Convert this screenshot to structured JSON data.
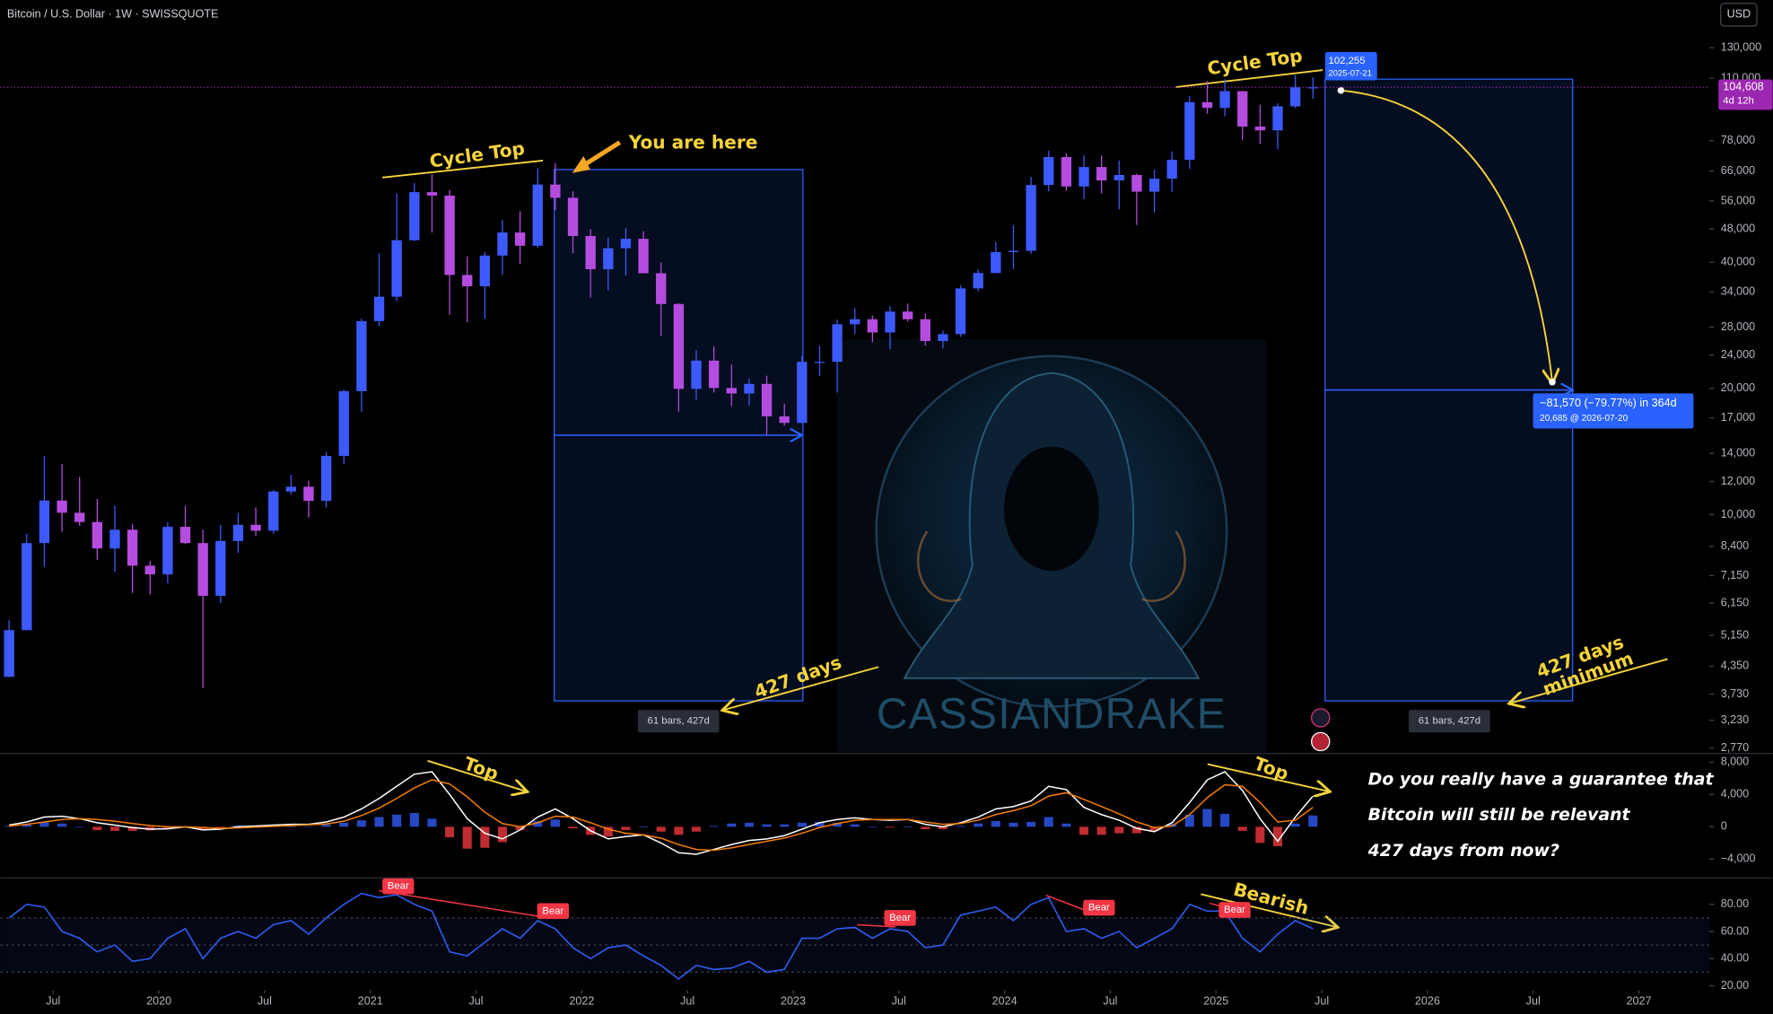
{
  "header": {
    "currency": "USD"
  },
  "watermark": "CASSIANDRAKE",
  "commentary": [
    "Do you really have a guarantee that",
    "Bitcoin will still be relevant",
    "427 days from now?"
  ],
  "chart_data": [
    {
      "type": "candlestick",
      "title": "Bitcoin / U.S. Dollar · 1W · SWISSQUOTE",
      "log_scale": true,
      "up_color": "#3d5afe",
      "down_color": "#b54ce0",
      "x": [
        "2019-04",
        "2019-05",
        "2019-06",
        "2019-07",
        "2019-08",
        "2019-09",
        "2019-10",
        "2019-11",
        "2019-12",
        "2020-01",
        "2020-02",
        "2020-03",
        "2020-04",
        "2020-05",
        "2020-06",
        "2020-07",
        "2020-08",
        "2020-09",
        "2020-10",
        "2020-11",
        "2020-12",
        "2021-01",
        "2021-02",
        "2021-03",
        "2021-04",
        "2021-05",
        "2021-06",
        "2021-07",
        "2021-08",
        "2021-09",
        "2021-10",
        "2021-11",
        "2021-12",
        "2022-01",
        "2022-02",
        "2022-03",
        "2022-04",
        "2022-05",
        "2022-06",
        "2022-07",
        "2022-08",
        "2022-09",
        "2022-10",
        "2022-11",
        "2022-12",
        "2023-01",
        "2023-02",
        "2023-03",
        "2023-04",
        "2023-05",
        "2023-06",
        "2023-07",
        "2023-08",
        "2023-09",
        "2023-10",
        "2023-11",
        "2023-12",
        "2024-01",
        "2024-02",
        "2024-03",
        "2024-04",
        "2024-05",
        "2024-06",
        "2024-07",
        "2024-08",
        "2024-09",
        "2024-10",
        "2024-11",
        "2024-12",
        "2025-01",
        "2025-02",
        "2025-03",
        "2025-04",
        "2025-05",
        "2025-06"
      ],
      "open": [
        4100,
        5300,
        8550,
        10800,
        10100,
        9600,
        8300,
        9200,
        7550,
        7200,
        9350,
        8550,
        6400,
        8650,
        9450,
        9150,
        11350,
        11650,
        10780,
        13800,
        19700,
        28950,
        33100,
        45150,
        58800,
        57700,
        37300,
        35050,
        41500,
        47100,
        43800,
        61300,
        57000,
        46200,
        38500,
        43200,
        45500,
        37650,
        31800,
        19950,
        23300,
        20050,
        19450,
        20500,
        17150,
        16550,
        23150,
        23150,
        28450,
        29250,
        27200,
        30500,
        29250,
        25950,
        26950,
        34650,
        37700,
        42300,
        42600,
        61150,
        71300,
        60650,
        67500,
        62700,
        64600,
        58950,
        63300,
        70200,
        96400,
        93400,
        102400,
        84300,
        82550,
        94200,
        104600
      ],
      "high": [
        5600,
        9000,
        13800,
        13200,
        12300,
        10900,
        10500,
        9500,
        7750,
        9600,
        10500,
        9200,
        9450,
        10080,
        10400,
        11450,
        12450,
        12050,
        14100,
        19850,
        29300,
        41950,
        58350,
        61800,
        64850,
        59500,
        41300,
        42300,
        50500,
        52900,
        67000,
        69000,
        59050,
        47950,
        45800,
        48200,
        47450,
        39950,
        31950,
        24650,
        25200,
        22800,
        21100,
        21450,
        18400,
        23950,
        25250,
        29200,
        31050,
        29850,
        31400,
        31850,
        30200,
        27500,
        35200,
        38450,
        44700,
        48950,
        63900,
        73800,
        72750,
        71950,
        71900,
        70000,
        65100,
        66500,
        73600,
        99800,
        108300,
        109350,
        102500,
        95000,
        95750,
        111950,
        110500
      ],
      "low": [
        4100,
        5300,
        7500,
        9100,
        9400,
        7800,
        7300,
        6500,
        6450,
        6850,
        8500,
        3850,
        6150,
        8100,
        8900,
        9000,
        11150,
        9850,
        10400,
        13200,
        17600,
        28150,
        32300,
        44950,
        47050,
        30000,
        28800,
        29300,
        37300,
        39600,
        43300,
        53250,
        42000,
        32950,
        34300,
        37200,
        37700,
        26700,
        17600,
        18800,
        19550,
        18150,
        18200,
        15500,
        16300,
        16500,
        21400,
        19550,
        26950,
        25800,
        24800,
        28850,
        25300,
        24900,
        26550,
        34100,
        37650,
        38550,
        41900,
        59050,
        59200,
        56550,
        58400,
        53500,
        49100,
        52550,
        58900,
        66800,
        90500,
        89200,
        78200,
        76600,
        74450,
        93350,
        98200
      ],
      "close": [
        5300,
        8550,
        10800,
        10100,
        9600,
        8300,
        9200,
        7550,
        7200,
        9350,
        8550,
        6400,
        8650,
        9450,
        9150,
        11350,
        11650,
        10780,
        13800,
        19700,
        28950,
        33100,
        45150,
        58800,
        57700,
        37300,
        35050,
        41500,
        47100,
        43800,
        61300,
        57000,
        46200,
        38500,
        43200,
        45500,
        37650,
        31800,
        19950,
        23300,
        20050,
        19450,
        20500,
        17150,
        16550,
        23150,
        23150,
        28450,
        29250,
        27200,
        30500,
        29250,
        25950,
        26950,
        34650,
        37700,
        42300,
        42600,
        61150,
        71300,
        60650,
        67500,
        62700,
        64600,
        58950,
        63300,
        70200,
        96400,
        93400,
        102400,
        84300,
        82550,
        94200,
        104600,
        104608
      ],
      "xlim": [
        "2019-04",
        "2027-05"
      ],
      "xticks": [
        {
          "value": "2019-07",
          "label": "Jul"
        },
        {
          "value": "2020-01",
          "label": "2020"
        },
        {
          "value": "2020-07",
          "label": "Jul"
        },
        {
          "value": "2021-01",
          "label": "2021"
        },
        {
          "value": "2021-07",
          "label": "Jul"
        },
        {
          "value": "2022-01",
          "label": "2022"
        },
        {
          "value": "2022-07",
          "label": "Jul"
        },
        {
          "value": "2023-01",
          "label": "2023"
        },
        {
          "value": "2023-07",
          "label": "Jul"
        },
        {
          "value": "2024-01",
          "label": "2024"
        },
        {
          "value": "2024-07",
          "label": "Jul"
        },
        {
          "value": "2025-01",
          "label": "2025"
        },
        {
          "value": "2025-07",
          "label": "Jul"
        },
        {
          "value": "2026-01",
          "label": "2026"
        },
        {
          "value": "2026-07",
          "label": "Jul"
        },
        {
          "value": "2027-01",
          "label": "2027"
        }
      ],
      "ylim": [
        2700,
        142000
      ],
      "yticks": [
        {
          "value": 130000,
          "label": "130,000"
        },
        {
          "value": 110000,
          "label": "110,000"
        },
        {
          "value": 78000,
          "label": "78,000"
        },
        {
          "value": 66000,
          "label": "66,000"
        },
        {
          "value": 56000,
          "label": "56,000"
        },
        {
          "value": 48000,
          "label": "48,000"
        },
        {
          "value": 40000,
          "label": "40,000"
        },
        {
          "value": 34000,
          "label": "34,000"
        },
        {
          "value": 28000,
          "label": "28,000"
        },
        {
          "value": 24000,
          "label": "24,000"
        },
        {
          "value": 20000,
          "label": "20,000"
        },
        {
          "value": 17000,
          "label": "17,000"
        },
        {
          "value": 14000,
          "label": "14,000"
        },
        {
          "value": 12000,
          "label": "12,000"
        },
        {
          "value": 10000,
          "label": "10,000"
        },
        {
          "value": 8400,
          "label": "8,400"
        },
        {
          "value": 7150,
          "label": "7,150"
        },
        {
          "value": 6150,
          "label": "6,150"
        },
        {
          "value": 5150,
          "label": "5,150"
        },
        {
          "value": 4350,
          "label": "4,350"
        },
        {
          "value": 3730,
          "label": "3,730"
        },
        {
          "value": 3230,
          "label": "3,230"
        },
        {
          "value": 2770,
          "label": "2,770"
        }
      ],
      "last_price": {
        "value": 104608,
        "label": "104,608"
      },
      "countdown": "4d 12h",
      "measure_start": {
        "price": "102,255",
        "date": "2025-07-21"
      },
      "measure_end": {
        "change": "−81,570 (−79.77%) in 364d",
        "target": "20,685 @ 2026-07-20"
      },
      "range_labels": [
        "61 bars, 427d",
        "61 bars, 427d"
      ],
      "annotations": [
        "Cycle Top",
        "You are here",
        "427 days",
        "Cycle Top",
        "427 days",
        "minimum"
      ]
    },
    {
      "type": "macd",
      "series": [
        {
          "style": "histogram",
          "color_up": "#2e55e8",
          "color_down": "#e0343a",
          "values": [
            100,
            300,
            600,
            400,
            0,
            -400,
            -500,
            -500,
            -450,
            -250,
            0,
            -300,
            -100,
            150,
            150,
            150,
            150,
            50,
            250,
            500,
            800,
            1200,
            1500,
            1700,
            1000,
            -1300,
            -2700,
            -2600,
            -1900,
            -400,
            700,
            900,
            -200,
            -1000,
            -1200,
            -400,
            0,
            -600,
            -1000,
            -600,
            100,
            400,
            500,
            300,
            300,
            500,
            600,
            500,
            300,
            0,
            -100,
            0,
            -300,
            -300,
            100,
            400,
            700,
            500,
            600,
            1200,
            400,
            -1000,
            -1000,
            -800,
            -800,
            -500,
            400,
            1500,
            2200,
            1600,
            -500,
            -2000,
            -2400,
            400,
            1400
          ]
        },
        {
          "style": "line",
          "color": "#ffffff",
          "values": [
            200,
            600,
            1200,
            1300,
            1000,
            500,
            200,
            -100,
            -300,
            -250,
            0,
            -400,
            -300,
            0,
            100,
            200,
            300,
            300,
            600,
            1200,
            2200,
            3500,
            5000,
            6500,
            6800,
            4000,
            1000,
            -800,
            -1500,
            -400,
            1200,
            2200,
            1000,
            -500,
            -1500,
            -1200,
            -1000,
            -2000,
            -3200,
            -3400,
            -2800,
            -2200,
            -1700,
            -1500,
            -1100,
            -300,
            500,
            900,
            1100,
            900,
            800,
            900,
            300,
            0,
            500,
            1200,
            2200,
            2500,
            3200,
            5000,
            4600,
            2400,
            1500,
            800,
            -200,
            -600,
            500,
            3000,
            5800,
            6800,
            4500,
            1000,
            -1800,
            1200,
            3800
          ]
        },
        {
          "style": "line",
          "color": "#f57c00",
          "values": [
            100,
            300,
            600,
            900,
            1000,
            900,
            700,
            400,
            150,
            0,
            0,
            -100,
            -200,
            -150,
            -50,
            50,
            150,
            250,
            350,
            700,
            1400,
            2300,
            3500,
            4800,
            5800,
            5300,
            3700,
            1800,
            400,
            0,
            500,
            1300,
            1200,
            500,
            -300,
            -800,
            -1000,
            -1400,
            -2200,
            -2800,
            -2900,
            -2600,
            -2200,
            -1800,
            -1400,
            -800,
            -100,
            400,
            800,
            900,
            900,
            900,
            600,
            300,
            400,
            800,
            1500,
            2000,
            2600,
            3800,
            4200,
            3400,
            2500,
            1600,
            600,
            -100,
            100,
            1500,
            3600,
            5200,
            5000,
            3000,
            600,
            800,
            2400
          ]
        }
      ],
      "ylim": [
        -6100,
        9000
      ],
      "yticks": [
        {
          "value": 8000,
          "label": "8,000"
        },
        {
          "value": 4000,
          "label": "4,000"
        },
        0,
        {
          "value": -4000,
          "label": "−4,000"
        }
      ],
      "annotations": [
        "Top",
        "Top"
      ]
    },
    {
      "type": "line",
      "series": [
        {
          "color": "#2f5cf0",
          "values": [
            70,
            80,
            78,
            60,
            55,
            45,
            50,
            38,
            40,
            55,
            62,
            40,
            55,
            60,
            55,
            65,
            68,
            58,
            70,
            80,
            88,
            85,
            87,
            80,
            75,
            45,
            42,
            52,
            62,
            55,
            68,
            62,
            48,
            40,
            48,
            50,
            42,
            35,
            25,
            35,
            32,
            33,
            38,
            30,
            32,
            55,
            55,
            62,
            63,
            55,
            62,
            60,
            48,
            50,
            72,
            75,
            78,
            68,
            80,
            85,
            60,
            62,
            55,
            60,
            48,
            55,
            62,
            80,
            75,
            75,
            55,
            45,
            58,
            68,
            62
          ]
        }
      ],
      "bands": [
        70,
        50,
        30
      ],
      "ylim": [
        17.5,
        98.3
      ],
      "yticks": [
        {
          "value": 80,
          "label": "80.00"
        },
        {
          "value": 60,
          "label": "60.00"
        },
        {
          "value": 40,
          "label": "40.00"
        },
        {
          "value": 20,
          "label": "20.00"
        }
      ],
      "divergence_labels": [
        "Bear",
        "Bear",
        "Bear",
        "Bear",
        "Bear"
      ],
      "annotations": [
        "Bearish"
      ]
    }
  ]
}
